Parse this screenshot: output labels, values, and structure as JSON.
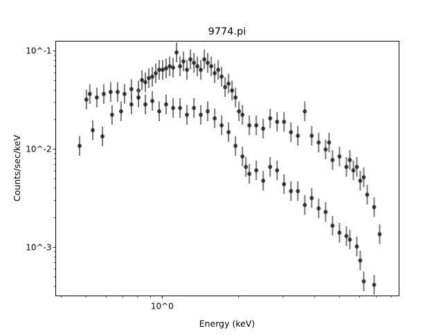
{
  "chart_data": {
    "type": "scatter",
    "title": "9774.pi",
    "xlabel": "Energy (keV)",
    "ylabel": "Counts/sec/keV",
    "xscale": "log",
    "yscale": "log",
    "xlim": [
      0.38,
      8.6
    ],
    "ylim": [
      0.00032,
      0.126
    ],
    "x_tick_labels": [
      {
        "value": 1,
        "label": "10^0"
      }
    ],
    "y_tick_labels": [
      {
        "value": 0.1,
        "label": "10^-1"
      },
      {
        "value": 0.01,
        "label": "10^-2"
      },
      {
        "value": 0.001,
        "label": "10^-3"
      }
    ],
    "grid": false,
    "yerr_dex": 0.1,
    "marker_color": "#000000",
    "errorbar_color": "#555555",
    "series": [
      {
        "points": [
          [
            0.502,
            0.032
          ],
          [
            0.518,
            0.0365
          ],
          [
            0.552,
            0.0336
          ],
          [
            0.588,
            0.0365
          ],
          [
            0.626,
            0.0383
          ],
          [
            0.667,
            0.0383
          ],
          [
            0.71,
            0.0365
          ],
          [
            0.756,
            0.0409
          ],
          [
            0.806,
            0.0396
          ],
          [
            0.832,
            0.0505
          ],
          [
            0.858,
            0.0481
          ],
          [
            0.885,
            0.053
          ],
          [
            0.914,
            0.0548
          ],
          [
            0.943,
            0.0594
          ],
          [
            0.973,
            0.0644
          ],
          [
            1.004,
            0.0644
          ],
          [
            1.036,
            0.0666
          ],
          [
            1.07,
            0.0699
          ],
          [
            1.104,
            0.0677
          ],
          [
            1.139,
            0.0968
          ],
          [
            1.176,
            0.0699
          ],
          [
            1.213,
            0.0783
          ],
          [
            1.252,
            0.0644
          ],
          [
            1.292,
            0.0823
          ],
          [
            1.334,
            0.0759
          ],
          [
            1.376,
            0.0699
          ],
          [
            1.42,
            0.0644
          ],
          [
            1.466,
            0.0823
          ],
          [
            1.512,
            0.0759
          ],
          [
            1.561,
            0.0699
          ],
          [
            1.611,
            0.0594
          ],
          [
            1.663,
            0.0644
          ],
          [
            1.716,
            0.0548
          ],
          [
            1.771,
            0.0429
          ],
          [
            1.827,
            0.0465
          ],
          [
            1.886,
            0.0396
          ],
          [
            1.946,
            0.0336
          ],
          [
            2.008,
            0.0243
          ],
          [
            2.073,
            0.0224
          ],
          [
            2.207,
            0.0175
          ],
          [
            2.35,
            0.0175
          ],
          [
            2.503,
            0.0162
          ],
          [
            2.666,
            0.0206
          ],
          [
            2.84,
            0.019
          ],
          [
            3.024,
            0.019
          ],
          [
            3.221,
            0.0149
          ],
          [
            3.43,
            0.0137
          ],
          [
            3.653,
            0.0243
          ],
          [
            3.89,
            0.0137
          ],
          [
            4.143,
            0.0117
          ],
          [
            4.413,
            0.00992
          ],
          [
            4.554,
            0.0117
          ],
          [
            4.699,
            0.00777
          ],
          [
            5.005,
            0.00843
          ],
          [
            5.331,
            0.0066
          ],
          [
            5.501,
            0.00777
          ],
          [
            5.678,
            0.00609
          ],
          [
            5.86,
            0.0066
          ],
          [
            6.045,
            0.00477
          ],
          [
            6.24,
            0.00517
          ],
          [
            6.439,
            0.00344
          ],
          [
            6.858,
            0.00257
          ],
          [
            7.211,
            0.00136
          ]
        ]
      },
      {
        "points": [
          [
            0.472,
            0.0108
          ],
          [
            0.532,
            0.0156
          ],
          [
            0.581,
            0.0135
          ],
          [
            0.634,
            0.0224
          ],
          [
            0.688,
            0.0243
          ],
          [
            0.756,
            0.0286
          ],
          [
            0.806,
            0.0336
          ],
          [
            0.858,
            0.0286
          ],
          [
            0.914,
            0.031
          ],
          [
            0.973,
            0.0243
          ],
          [
            1.036,
            0.0286
          ],
          [
            1.104,
            0.0263
          ],
          [
            1.176,
            0.0263
          ],
          [
            1.252,
            0.0224
          ],
          [
            1.334,
            0.0263
          ],
          [
            1.42,
            0.0224
          ],
          [
            1.512,
            0.0243
          ],
          [
            1.611,
            0.0206
          ],
          [
            1.716,
            0.0175
          ],
          [
            1.827,
            0.0149
          ],
          [
            1.946,
            0.0108
          ],
          [
            2.073,
            0.00843
          ],
          [
            2.139,
            0.0066
          ],
          [
            2.207,
            0.00561
          ],
          [
            2.35,
            0.00609
          ],
          [
            2.503,
            0.00477
          ],
          [
            2.666,
            0.0066
          ],
          [
            2.84,
            0.00609
          ],
          [
            3.024,
            0.0044
          ],
          [
            3.221,
            0.00374
          ],
          [
            3.43,
            0.00374
          ],
          [
            3.653,
            0.0027
          ],
          [
            3.89,
            0.00318
          ],
          [
            4.143,
            0.00249
          ],
          [
            4.413,
            0.00229
          ],
          [
            4.699,
            0.00166
          ],
          [
            5.005,
            0.00141
          ],
          [
            5.331,
            0.0013
          ],
          [
            5.501,
            0.0012
          ],
          [
            5.86,
            0.00102
          ],
          [
            6.045,
            0.000734
          ],
          [
            6.24,
            0.00045
          ],
          [
            6.858,
            0.000415
          ]
        ]
      }
    ]
  }
}
